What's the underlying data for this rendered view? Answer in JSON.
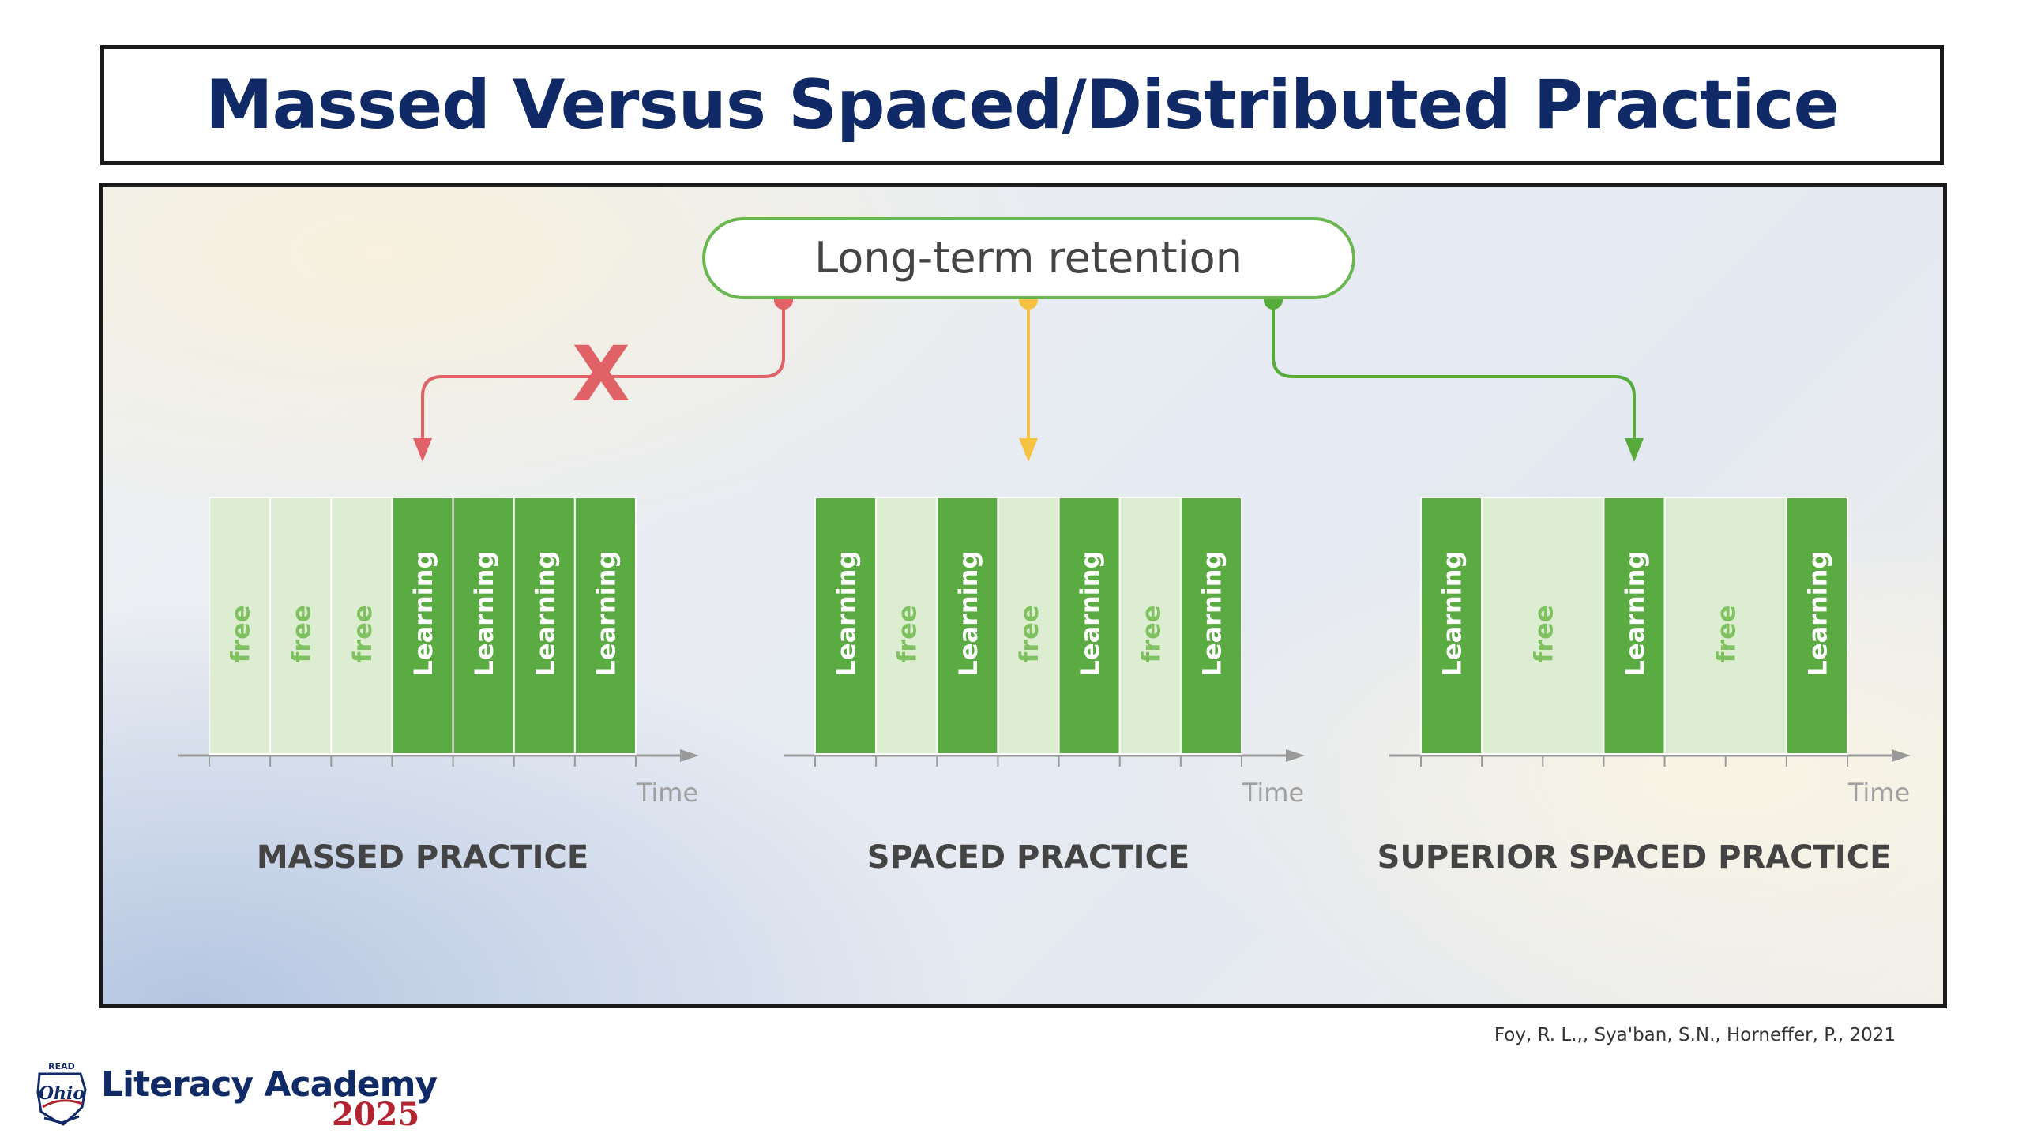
{
  "slide": {
    "title": "Massed Versus Spaced/Distributed Practice",
    "citation": "Foy, R. L.,, Sya'ban, S.N., Horneffer, P., 2021"
  },
  "logo": {
    "badge_text": "READ",
    "state_text": "Ohio",
    "name": "Literacy Academy",
    "year": "2025"
  },
  "diagram": {
    "retention_label": "Long-term retention",
    "blocked_marker": "X",
    "axis_label": "Time",
    "colors": {
      "learning": "#5bab43",
      "free": "#dcedd2",
      "free_text": "#7fc160",
      "red": "#e06266",
      "yellow": "#f5c242",
      "green": "#56ab3b",
      "axis": "#999999",
      "caption": "#444444"
    },
    "schedules": [
      {
        "caption": "MASSED PRACTICE",
        "arrow": "red",
        "blocks": [
          {
            "label": "free",
            "type": "free",
            "units": 1
          },
          {
            "label": "free",
            "type": "free",
            "units": 1
          },
          {
            "label": "free",
            "type": "free",
            "units": 1
          },
          {
            "label": "Learning",
            "type": "learning",
            "units": 1
          },
          {
            "label": "Learning",
            "type": "learning",
            "units": 1
          },
          {
            "label": "Learning",
            "type": "learning",
            "units": 1
          },
          {
            "label": "Learning",
            "type": "learning",
            "units": 1
          }
        ]
      },
      {
        "caption": "SPACED PRACTICE",
        "arrow": "yellow",
        "blocks": [
          {
            "label": "Learning",
            "type": "learning",
            "units": 1
          },
          {
            "label": "free",
            "type": "free",
            "units": 1
          },
          {
            "label": "Learning",
            "type": "learning",
            "units": 1
          },
          {
            "label": "free",
            "type": "free",
            "units": 1
          },
          {
            "label": "Learning",
            "type": "learning",
            "units": 1
          },
          {
            "label": "free",
            "type": "free",
            "units": 1
          },
          {
            "label": "Learning",
            "type": "learning",
            "units": 1
          }
        ]
      },
      {
        "caption": "SUPERIOR SPACED PRACTICE",
        "arrow": "green",
        "blocks": [
          {
            "label": "Learning",
            "type": "learning",
            "units": 1
          },
          {
            "label": "free",
            "type": "free",
            "units": 2
          },
          {
            "label": "Learning",
            "type": "learning",
            "units": 1
          },
          {
            "label": "free",
            "type": "free",
            "units": 2
          },
          {
            "label": "Learning",
            "type": "learning",
            "units": 1
          }
        ]
      }
    ]
  }
}
